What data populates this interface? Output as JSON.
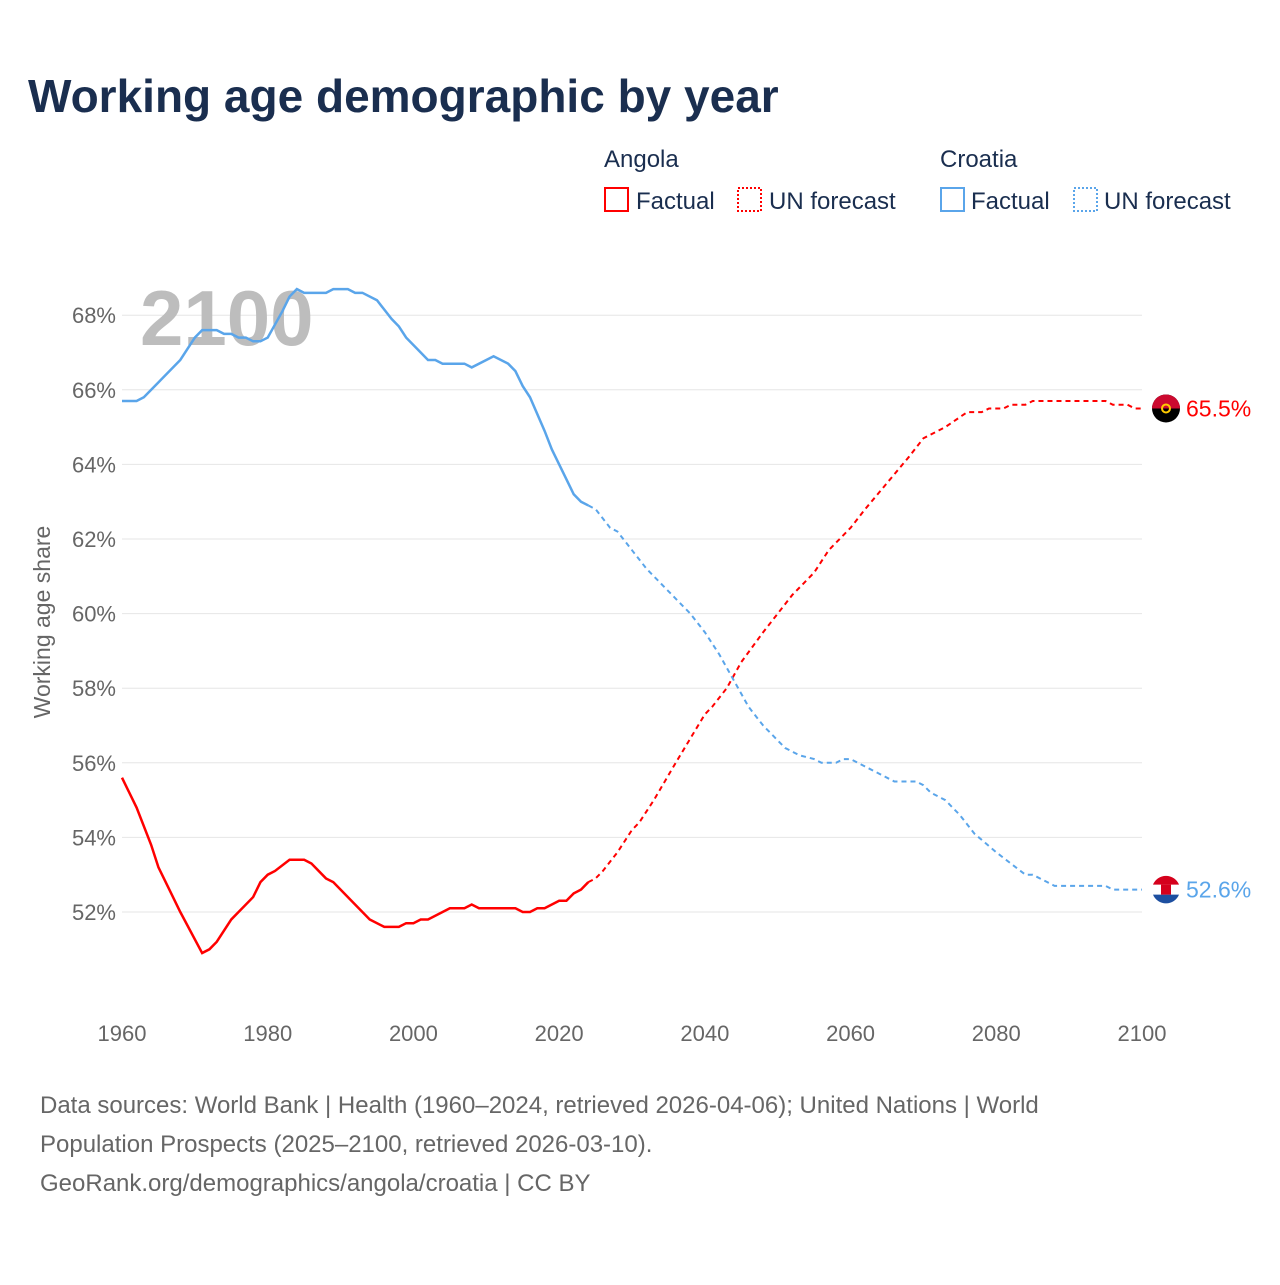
{
  "chart_data": {
    "type": "line",
    "title": "Working age demographic by year",
    "ylabel": "Working age share",
    "xlabel": "",
    "year_overlay": "2100",
    "xlim": [
      1960,
      2100
    ],
    "ylim": [
      50,
      68.8
    ],
    "x_ticks": [
      "1960",
      "1980",
      "2000",
      "2020",
      "2040",
      "2060",
      "2080",
      "2100"
    ],
    "y_ticks": [
      "52%",
      "54%",
      "56%",
      "58%",
      "60%",
      "62%",
      "64%",
      "66%",
      "68%"
    ],
    "grid": true,
    "legend": {
      "placement": "top-right",
      "groups": [
        {
          "name": "Angola",
          "entries": [
            "Factual",
            "UN forecast"
          ]
        },
        {
          "name": "Croatia",
          "entries": [
            "Factual",
            "UN forecast"
          ]
        }
      ]
    },
    "series": [
      {
        "name": "Angola",
        "color": "#ff0000",
        "end_label": "65.5%",
        "factual": [
          [
            1960,
            55.6
          ],
          [
            1962,
            54.8
          ],
          [
            1964,
            53.8
          ],
          [
            1965,
            53.2
          ],
          [
            1968,
            52.0
          ],
          [
            1971,
            50.9
          ],
          [
            1972,
            51.0
          ],
          [
            1973,
            51.2
          ],
          [
            1975,
            51.8
          ],
          [
            1976,
            52.0
          ],
          [
            1978,
            52.4
          ],
          [
            1979,
            52.8
          ],
          [
            1980,
            53.0
          ],
          [
            1981,
            53.1
          ],
          [
            1983,
            53.4
          ],
          [
            1985,
            53.4
          ],
          [
            1986,
            53.3
          ],
          [
            1988,
            52.9
          ],
          [
            1989,
            52.8
          ],
          [
            1994,
            51.8
          ],
          [
            1996,
            51.6
          ],
          [
            1998,
            51.6
          ],
          [
            1999,
            51.7
          ],
          [
            2000,
            51.7
          ],
          [
            2001,
            51.8
          ],
          [
            2002,
            51.8
          ],
          [
            2005,
            52.1
          ],
          [
            2007,
            52.1
          ],
          [
            2008,
            52.2
          ],
          [
            2009,
            52.1
          ],
          [
            2014,
            52.1
          ],
          [
            2015,
            52.0
          ],
          [
            2016,
            52.0
          ],
          [
            2017,
            52.1
          ],
          [
            2018,
            52.1
          ],
          [
            2020,
            52.3
          ],
          [
            2021,
            52.3
          ],
          [
            2022,
            52.5
          ],
          [
            2023,
            52.6
          ],
          [
            2024,
            52.8
          ]
        ],
        "forecast": [
          [
            2024,
            52.8
          ],
          [
            2025,
            52.9
          ],
          [
            2026,
            53.1
          ],
          [
            2028,
            53.6
          ],
          [
            2030,
            54.2
          ],
          [
            2031,
            54.4
          ],
          [
            2033,
            55.0
          ],
          [
            2036,
            56.0
          ],
          [
            2040,
            57.3
          ],
          [
            2041,
            57.5
          ],
          [
            2043,
            58.0
          ],
          [
            2045,
            58.7
          ],
          [
            2048,
            59.5
          ],
          [
            2050,
            60.0
          ],
          [
            2052,
            60.5
          ],
          [
            2055,
            61.1
          ],
          [
            2057,
            61.7
          ],
          [
            2060,
            62.3
          ],
          [
            2062,
            62.8
          ],
          [
            2065,
            63.5
          ],
          [
            2068,
            64.2
          ],
          [
            2070,
            64.7
          ],
          [
            2073,
            65.0
          ],
          [
            2076,
            65.4
          ],
          [
            2078,
            65.4
          ],
          [
            2079,
            65.5
          ],
          [
            2081,
            65.5
          ],
          [
            2082,
            65.6
          ],
          [
            2084,
            65.6
          ],
          [
            2085,
            65.7
          ],
          [
            2095,
            65.7
          ],
          [
            2096,
            65.6
          ],
          [
            2098,
            65.6
          ],
          [
            2099,
            65.5
          ],
          [
            2100,
            65.5
          ]
        ]
      },
      {
        "name": "Croatia",
        "color": "#5aa5ea",
        "end_label": "52.6%",
        "factual": [
          [
            1960,
            65.7
          ],
          [
            1962,
            65.7
          ],
          [
            1963,
            65.8
          ],
          [
            1965,
            66.2
          ],
          [
            1968,
            66.8
          ],
          [
            1970,
            67.4
          ],
          [
            1971,
            67.6
          ],
          [
            1973,
            67.6
          ],
          [
            1974,
            67.5
          ],
          [
            1975,
            67.5
          ],
          [
            1976,
            67.4
          ],
          [
            1977,
            67.4
          ],
          [
            1978,
            67.3
          ],
          [
            1979,
            67.3
          ],
          [
            1980,
            67.4
          ],
          [
            1982,
            68.1
          ],
          [
            1983,
            68.5
          ],
          [
            1984,
            68.7
          ],
          [
            1985,
            68.6
          ],
          [
            1986,
            68.6
          ],
          [
            1988,
            68.6
          ],
          [
            1989,
            68.7
          ],
          [
            1991,
            68.7
          ],
          [
            1992,
            68.6
          ],
          [
            1993,
            68.6
          ],
          [
            1995,
            68.4
          ],
          [
            1997,
            67.9
          ],
          [
            1998,
            67.7
          ],
          [
            1999,
            67.4
          ],
          [
            2001,
            67.0
          ],
          [
            2002,
            66.8
          ],
          [
            2003,
            66.8
          ],
          [
            2004,
            66.7
          ],
          [
            2007,
            66.7
          ],
          [
            2008,
            66.6
          ],
          [
            2010,
            66.8
          ],
          [
            2011,
            66.9
          ],
          [
            2013,
            66.7
          ],
          [
            2014,
            66.5
          ],
          [
            2015,
            66.1
          ],
          [
            2016,
            65.8
          ],
          [
            2018,
            64.9
          ],
          [
            2019,
            64.4
          ],
          [
            2021,
            63.6
          ],
          [
            2022,
            63.2
          ],
          [
            2023,
            63.0
          ],
          [
            2024,
            62.9
          ]
        ],
        "forecast": [
          [
            2024,
            62.9
          ],
          [
            2025,
            62.8
          ],
          [
            2027,
            62.3
          ],
          [
            2028,
            62.2
          ],
          [
            2030,
            61.7
          ],
          [
            2032,
            61.2
          ],
          [
            2034,
            60.8
          ],
          [
            2036,
            60.4
          ],
          [
            2037,
            60.2
          ],
          [
            2038,
            60.0
          ],
          [
            2040,
            59.5
          ],
          [
            2042,
            58.9
          ],
          [
            2044,
            58.2
          ],
          [
            2046,
            57.5
          ],
          [
            2048,
            57.0
          ],
          [
            2050,
            56.6
          ],
          [
            2051,
            56.4
          ],
          [
            2053,
            56.2
          ],
          [
            2055,
            56.1
          ],
          [
            2056,
            56.0
          ],
          [
            2058,
            56.0
          ],
          [
            2059,
            56.1
          ],
          [
            2060,
            56.1
          ],
          [
            2062,
            55.9
          ],
          [
            2064,
            55.7
          ],
          [
            2066,
            55.5
          ],
          [
            2069,
            55.5
          ],
          [
            2070,
            55.4
          ],
          [
            2071,
            55.2
          ],
          [
            2073,
            55.0
          ],
          [
            2075,
            54.6
          ],
          [
            2077,
            54.1
          ],
          [
            2080,
            53.6
          ],
          [
            2082,
            53.3
          ],
          [
            2084,
            53.0
          ],
          [
            2085,
            53.0
          ],
          [
            2087,
            52.8
          ],
          [
            2088,
            52.7
          ],
          [
            2095,
            52.7
          ],
          [
            2096,
            52.6
          ],
          [
            2100,
            52.6
          ]
        ]
      }
    ],
    "source_lines": [
      "Data sources: World Bank | Health (1960–2024, retrieved 2026-04-06); United Nations | World",
      "Population Prospects (2025–2100, retrieved 2026-03-10).",
      "GeoRank.org/demographics/angola/croatia | CC BY"
    ]
  }
}
